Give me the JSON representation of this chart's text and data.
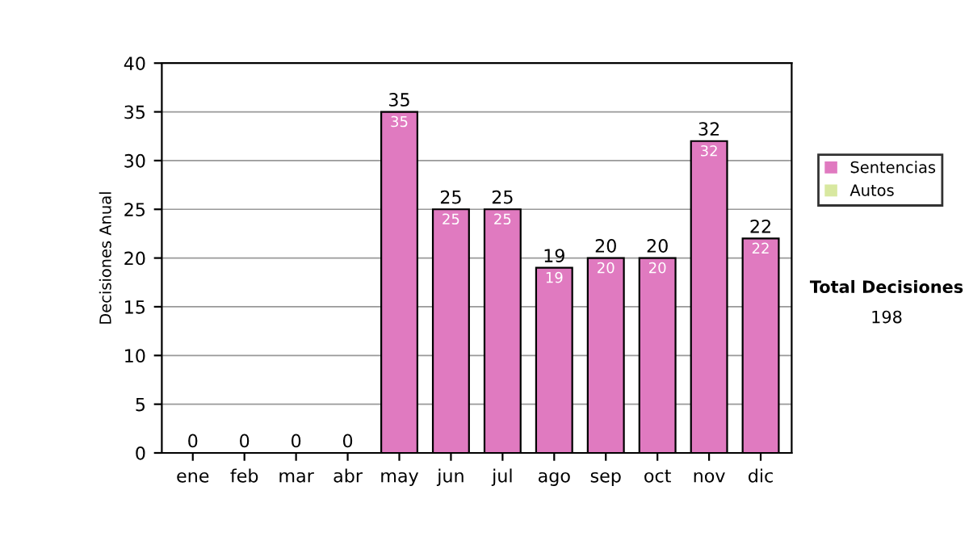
{
  "chart_data": {
    "type": "bar",
    "stacked": true,
    "ylabel": "Decisiones Anual",
    "categories": [
      "ene",
      "feb",
      "mar",
      "abr",
      "may",
      "jun",
      "jul",
      "ago",
      "sep",
      "oct",
      "nov",
      "dic"
    ],
    "series": [
      {
        "name": "Sentencias",
        "color": "#e07ac0",
        "values": [
          0,
          0,
          0,
          0,
          35,
          25,
          25,
          19,
          20,
          20,
          32,
          22
        ],
        "value_labels": [
          null,
          null,
          null,
          null,
          "35",
          "25",
          "25",
          "19",
          "20",
          "20",
          "32",
          "22"
        ]
      },
      {
        "name": "Autos",
        "color": "#d8e8a0",
        "values": [
          0,
          0,
          0,
          0,
          0,
          0,
          0,
          0,
          0,
          0,
          0,
          0
        ]
      }
    ],
    "totals": [
      "0",
      "0",
      "0",
      "0",
      "35",
      "25",
      "25",
      "19",
      "20",
      "20",
      "32",
      "22"
    ],
    "ylim": [
      0,
      40
    ],
    "yticks": [
      0,
      5,
      10,
      15,
      20,
      25,
      30,
      35,
      40
    ],
    "grid": "y",
    "legend": "right",
    "annotations": [
      "Total Decisiones",
      "198"
    ]
  }
}
